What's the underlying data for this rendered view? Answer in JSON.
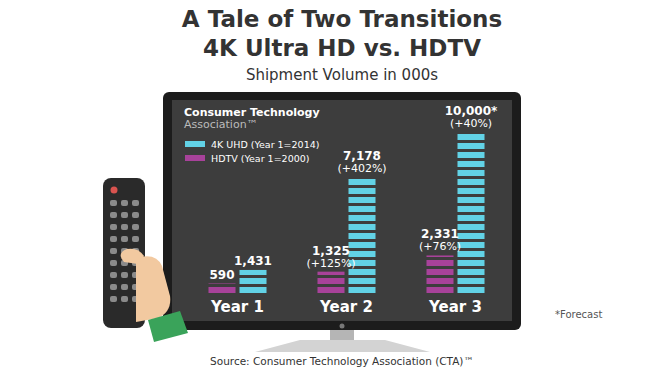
{
  "chart_data": {
    "type": "bar",
    "title": "A Tale of Two Transitions",
    "subtitle": "4K Ultra HD vs. HDTV",
    "y_label": "Shipment Volume in 000s",
    "logo_lines": [
      "Consumer Technology",
      "Association™"
    ],
    "categories": [
      "Year 1",
      "Year 2",
      "Year 3"
    ],
    "series": [
      {
        "name": "HDTV (Year 1=2000)",
        "color": "#a8429a",
        "values": [
          590,
          1325,
          2331
        ],
        "value_labels": [
          "590",
          "1,325",
          "2,331"
        ],
        "changes": [
          null,
          125,
          76
        ],
        "change_labels": [
          null,
          "(+125%)",
          "(+76%)"
        ]
      },
      {
        "name": "4K UHD (Year 1=2014)",
        "color": "#62d2e6",
        "values": [
          1431,
          7178,
          10000
        ],
        "value_labels": [
          "1,431",
          "7,178",
          "10,000*"
        ],
        "changes": [
          null,
          402,
          40
        ],
        "change_labels": [
          null,
          "(+402%)",
          "(+40%)"
        ]
      }
    ],
    "ylim": [
      0,
      10000
    ],
    "grid": false,
    "legend": "top-left",
    "data_labels": true,
    "tick_labels": "x",
    "note": "*Forecast",
    "source": "Source: Consumer Technology Association (CTA)™"
  }
}
